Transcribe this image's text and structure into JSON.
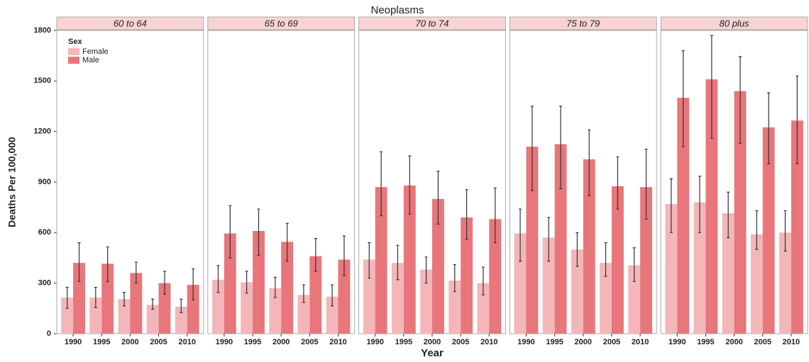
{
  "chart_data": {
    "type": "bar",
    "title": "Neoplasms",
    "xlabel": "Year",
    "ylabel": "Deaths Per 100,000",
    "legend_title": "Sex",
    "legend_position": "upper left",
    "categories": [
      "1990",
      "1995",
      "2000",
      "2005",
      "2010"
    ],
    "ylim": [
      0,
      1800
    ],
    "yticks": [
      0,
      300,
      600,
      900,
      1200,
      1500,
      1800
    ],
    "grid": false,
    "series": [
      {
        "name": "Female",
        "color": "#f4b6b8"
      },
      {
        "name": "Male",
        "color": "#e8767a"
      }
    ],
    "facets": [
      {
        "title": "60 to 64",
        "series": [
          {
            "values": [
              215,
              215,
              205,
              170,
              160
            ],
            "low": [
              150,
              155,
              165,
              145,
              125
            ],
            "high": [
              275,
              275,
              245,
              205,
              205
            ]
          },
          {
            "values": [
              420,
              415,
              360,
              300,
              290
            ],
            "low": [
              310,
              310,
              300,
              235,
              200
            ],
            "high": [
              540,
              515,
              425,
              370,
              385
            ]
          }
        ]
      },
      {
        "title": "65 to 69",
        "series": [
          {
            "values": [
              320,
              305,
              270,
              230,
              220
            ],
            "low": [
              245,
              240,
              215,
              185,
              165
            ],
            "high": [
              405,
              370,
              335,
              290,
              290
            ]
          },
          {
            "values": [
              595,
              610,
              545,
              460,
              440
            ],
            "low": [
              450,
              465,
              430,
              370,
              345
            ],
            "high": [
              760,
              740,
              655,
              565,
              580
            ]
          }
        ]
      },
      {
        "title": "70 to 74",
        "series": [
          {
            "values": [
              440,
              420,
              380,
              315,
              300
            ],
            "low": [
              330,
              320,
              300,
              250,
              230
            ],
            "high": [
              540,
              525,
              455,
              410,
              395
            ]
          },
          {
            "values": [
              870,
              880,
              800,
              690,
              680
            ],
            "low": [
              700,
              710,
              650,
              560,
              540
            ],
            "high": [
              1080,
              1055,
              965,
              855,
              865
            ]
          }
        ]
      },
      {
        "title": "75 to 79",
        "series": [
          {
            "values": [
              595,
              570,
              500,
              420,
              405
            ],
            "low": [
              430,
              430,
              400,
              340,
              310
            ],
            "high": [
              740,
              690,
              600,
              540,
              510
            ]
          },
          {
            "values": [
              1110,
              1125,
              1035,
              875,
              870
            ],
            "low": [
              850,
              860,
              820,
              740,
              680
            ],
            "high": [
              1350,
              1350,
              1210,
              1050,
              1095
            ]
          }
        ]
      },
      {
        "title": "80 plus",
        "series": [
          {
            "values": [
              770,
              780,
              715,
              590,
              600
            ],
            "low": [
              600,
              600,
              570,
              500,
              490
            ],
            "high": [
              920,
              935,
              840,
              730,
              730
            ]
          },
          {
            "values": [
              1400,
              1510,
              1440,
              1225,
              1265
            ],
            "low": [
              1110,
              1160,
              1130,
              1010,
              1010
            ],
            "high": [
              1680,
              1770,
              1645,
              1430,
              1530
            ]
          }
        ]
      }
    ]
  }
}
